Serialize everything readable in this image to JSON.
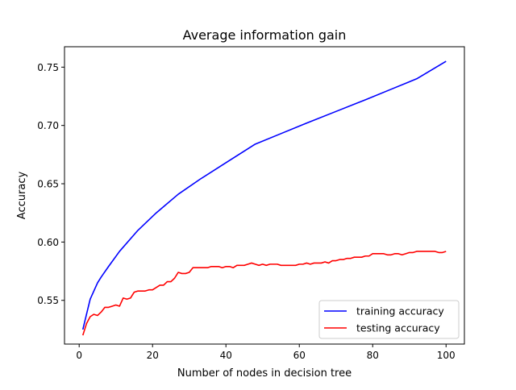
{
  "chart_data": {
    "type": "line",
    "title": "Average information gain",
    "xlabel": "Number of nodes in decision tree",
    "ylabel": "Accuracy",
    "xlim": [
      -4.0,
      105.0
    ],
    "ylim": [
      0.5125,
      0.7675
    ],
    "xticks": [
      0,
      20,
      40,
      60,
      80,
      100
    ],
    "xtick_labels": [
      "0",
      "20",
      "40",
      "60",
      "80",
      "100"
    ],
    "yticks": [
      0.55,
      0.6,
      0.65,
      0.7,
      0.75
    ],
    "ytick_labels": [
      "0.55",
      "0.60",
      "0.65",
      "0.70",
      "0.75"
    ],
    "grid": false,
    "legend_position": "lower-right",
    "series": [
      {
        "name": "training accuracy",
        "color": "#0000ff",
        "x": [
          1,
          2,
          3,
          4,
          5,
          6,
          8,
          11,
          16,
          21,
          27,
          33,
          40,
          48,
          55,
          62,
          70,
          78,
          85,
          92,
          100
        ],
        "y": [
          0.525,
          0.538,
          0.551,
          0.558,
          0.565,
          0.57,
          0.579,
          0.592,
          0.61,
          0.625,
          0.641,
          0.654,
          0.668,
          0.684,
          0.693,
          0.702,
          0.712,
          0.722,
          0.731,
          0.74,
          0.755
        ]
      },
      {
        "name": "testing accuracy",
        "color": "#ff0000",
        "x": [
          1,
          2,
          3,
          4,
          5,
          6,
          7,
          8,
          9,
          10,
          11,
          12,
          13,
          14,
          15,
          16,
          17,
          18,
          19,
          20,
          21,
          22,
          23,
          24,
          25,
          26,
          27,
          28,
          29,
          30,
          31,
          32,
          33,
          34,
          35,
          36,
          37,
          38,
          39,
          40,
          41,
          42,
          43,
          44,
          45,
          46,
          47,
          48,
          49,
          50,
          51,
          52,
          53,
          54,
          55,
          56,
          57,
          58,
          59,
          60,
          61,
          62,
          63,
          64,
          65,
          66,
          67,
          68,
          69,
          70,
          71,
          72,
          73,
          74,
          75,
          76,
          77,
          78,
          79,
          80,
          81,
          82,
          83,
          84,
          85,
          86,
          87,
          88,
          89,
          90,
          91,
          92,
          93,
          94,
          95,
          96,
          97,
          98,
          99,
          100
        ],
        "y": [
          0.52,
          0.53,
          0.536,
          0.538,
          0.537,
          0.54,
          0.544,
          0.544,
          0.545,
          0.546,
          0.545,
          0.552,
          0.551,
          0.552,
          0.557,
          0.558,
          0.558,
          0.558,
          0.559,
          0.559,
          0.561,
          0.563,
          0.563,
          0.566,
          0.566,
          0.569,
          0.574,
          0.573,
          0.573,
          0.574,
          0.578,
          0.578,
          0.578,
          0.578,
          0.578,
          0.579,
          0.579,
          0.579,
          0.578,
          0.579,
          0.579,
          0.578,
          0.58,
          0.58,
          0.58,
          0.581,
          0.582,
          0.581,
          0.58,
          0.581,
          0.58,
          0.581,
          0.581,
          0.581,
          0.58,
          0.58,
          0.58,
          0.58,
          0.58,
          0.581,
          0.581,
          0.582,
          0.581,
          0.582,
          0.582,
          0.582,
          0.583,
          0.582,
          0.584,
          0.584,
          0.585,
          0.585,
          0.586,
          0.586,
          0.587,
          0.587,
          0.587,
          0.588,
          0.588,
          0.59,
          0.59,
          0.59,
          0.59,
          0.589,
          0.589,
          0.59,
          0.59,
          0.589,
          0.59,
          0.591,
          0.591,
          0.592,
          0.592,
          0.592,
          0.592,
          0.592,
          0.592,
          0.591,
          0.591,
          0.592
        ]
      }
    ]
  }
}
